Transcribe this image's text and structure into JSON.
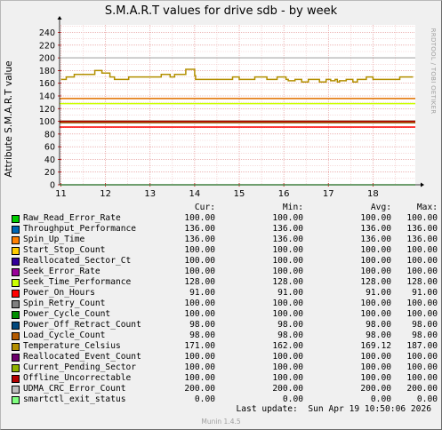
{
  "chart_data": {
    "type": "line",
    "title": "S.M.A.R.T values for drive sdb - by week",
    "ylabel": "Attribute S.M.A.R.T value",
    "xlabel": "",
    "ylim": [
      0,
      252
    ],
    "y_ticks": [
      0,
      20,
      40,
      60,
      80,
      100,
      120,
      140,
      160,
      180,
      200,
      220,
      240
    ],
    "x_range": [
      10.97,
      18.95
    ],
    "x_ticks": [
      {
        "value": 11,
        "label": "11"
      },
      {
        "value": 12,
        "label": "12"
      },
      {
        "value": 13,
        "label": "13"
      },
      {
        "value": 14,
        "label": "14"
      },
      {
        "value": 15,
        "label": "15"
      },
      {
        "value": 16,
        "label": "16"
      },
      {
        "value": 17,
        "label": "17"
      },
      {
        "value": 18,
        "label": "18"
      }
    ],
    "grid": true,
    "legend_position": "bottom",
    "columns": [
      "Cur:",
      "Min:",
      "Avg:",
      "Max:"
    ],
    "series": [
      {
        "name": "Raw_Read_Error_Rate",
        "color": "#00cc00",
        "cur": "100.00",
        "min": "100.00",
        "avg": "100.00",
        "max": "100.00",
        "constant": 100
      },
      {
        "name": "Throughput_Performance",
        "color": "#0066b3",
        "cur": "136.00",
        "min": "136.00",
        "avg": "136.00",
        "max": "136.00",
        "constant": 136
      },
      {
        "name": "Spin_Up_Time",
        "color": "#ff8000",
        "cur": "136.00",
        "min": "136.00",
        "avg": "136.00",
        "max": "136.00",
        "constant": 136
      },
      {
        "name": "Start_Stop_Count",
        "color": "#ffcc00",
        "cur": "100.00",
        "min": "100.00",
        "avg": "100.00",
        "max": "100.00",
        "constant": 100
      },
      {
        "name": "Reallocated_Sector_Ct",
        "color": "#330099",
        "cur": "100.00",
        "min": "100.00",
        "avg": "100.00",
        "max": "100.00",
        "constant": 100
      },
      {
        "name": "Seek_Error_Rate",
        "color": "#990099",
        "cur": "100.00",
        "min": "100.00",
        "avg": "100.00",
        "max": "100.00",
        "constant": 100
      },
      {
        "name": "Seek_Time_Performance",
        "color": "#ccff00",
        "cur": "128.00",
        "min": "128.00",
        "avg": "128.00",
        "max": "128.00",
        "constant": 128
      },
      {
        "name": "Power_On_Hours",
        "color": "#ff0000",
        "cur": "91.00",
        "min": "91.00",
        "avg": "91.00",
        "max": "91.00",
        "constant": 91
      },
      {
        "name": "Spin_Retry_Count",
        "color": "#808080",
        "cur": "100.00",
        "min": "100.00",
        "avg": "100.00",
        "max": "100.00",
        "constant": 100
      },
      {
        "name": "Power_Cycle_Count",
        "color": "#008f00",
        "cur": "100.00",
        "min": "100.00",
        "avg": "100.00",
        "max": "100.00",
        "constant": 100
      },
      {
        "name": "Power_Off_Retract_Count",
        "color": "#00487d",
        "cur": "98.00",
        "min": "98.00",
        "avg": "98.00",
        "max": "98.00",
        "constant": 98
      },
      {
        "name": "Load_Cycle_Count",
        "color": "#b35a00",
        "cur": "98.00",
        "min": "98.00",
        "avg": "98.00",
        "max": "98.00",
        "constant": 98
      },
      {
        "name": "Temperature_Celsius",
        "color": "#b38f00",
        "cur": "171.00",
        "min": "162.00",
        "avg": "169.12",
        "max": "187.00",
        "x": [
          11.0,
          11.06,
          11.12,
          11.2,
          11.3,
          11.5,
          11.75,
          11.76,
          11.9,
          11.92,
          12.05,
          12.1,
          12.2,
          12.5,
          12.52,
          12.8,
          13.0,
          13.02,
          13.2,
          13.25,
          13.35,
          13.45,
          13.5,
          13.55,
          13.62,
          13.75,
          13.8,
          13.9,
          14.0,
          14.02,
          14.5,
          14.8,
          14.85,
          14.9,
          15.0,
          15.3,
          15.35,
          15.6,
          15.62,
          15.8,
          15.85,
          16.0,
          16.05,
          16.1,
          16.2,
          16.25,
          16.35,
          16.4,
          16.5,
          16.55,
          16.6,
          16.75,
          16.8,
          16.9,
          16.95,
          17.0,
          17.05,
          17.1,
          17.15,
          17.2,
          17.25,
          17.3,
          17.4,
          17.5,
          17.55,
          17.6,
          17.65,
          17.8,
          17.85,
          18.0,
          18.5,
          18.6,
          18.9
        ],
        "values": [
          166,
          166,
          170,
          170,
          174,
          174,
          174,
          180,
          180,
          176,
          176,
          170,
          166,
          166,
          170,
          170,
          170,
          170,
          170,
          174,
          174,
          170,
          170,
          174,
          174,
          174,
          182,
          182,
          172,
          166,
          166,
          166,
          170,
          170,
          166,
          166,
          170,
          170,
          166,
          166,
          170,
          170,
          166,
          164,
          164,
          166,
          166,
          162,
          162,
          166,
          166,
          166,
          162,
          162,
          166,
          166,
          164,
          164,
          166,
          162,
          164,
          164,
          166,
          166,
          162,
          162,
          166,
          166,
          170,
          166,
          166,
          170,
          170
        ]
      },
      {
        "name": "Reallocated_Event_Count",
        "color": "#6b006b",
        "cur": "100.00",
        "min": "100.00",
        "avg": "100.00",
        "max": "100.00",
        "constant": 100
      },
      {
        "name": "Current_Pending_Sector",
        "color": "#8fb300",
        "cur": "100.00",
        "min": "100.00",
        "avg": "100.00",
        "max": "100.00",
        "constant": 100
      },
      {
        "name": "Offline_Uncorrectable",
        "color": "#b30000",
        "cur": "100.00",
        "min": "100.00",
        "avg": "100.00",
        "max": "100.00",
        "constant": 100
      },
      {
        "name": "UDMA_CRC_Error_Count",
        "color": "#bebebe",
        "cur": "200.00",
        "min": "200.00",
        "avg": "200.00",
        "max": "200.00",
        "constant": 200
      },
      {
        "name": "smartctl_exit_status",
        "color": "#80ff80",
        "cur": "0.00",
        "min": "0.00",
        "avg": "0.00",
        "max": "0.00",
        "constant": 0
      }
    ]
  },
  "watermark": "RRDTOOL / TOBI OETIKER",
  "last_update_label": "Last update:",
  "last_update_value": "Sun Apr 19 10:50:06 2026",
  "footer": "Munin 1.4.5"
}
